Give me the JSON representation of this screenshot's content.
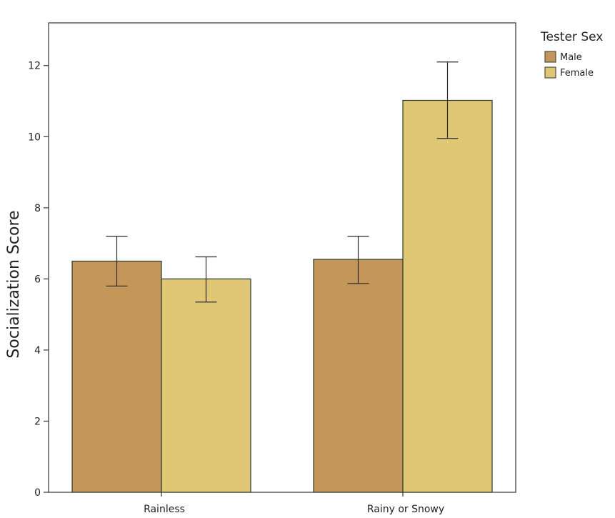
{
  "chart_data": {
    "type": "bar",
    "title": "",
    "xlabel": "",
    "ylabel": "Socialization Score",
    "ylim": [
      0,
      13.2
    ],
    "yticks": [
      0,
      2,
      4,
      6,
      8,
      10,
      12
    ],
    "categories": [
      "Rainless",
      "Rainy or Snowy"
    ],
    "series": [
      {
        "name": "Male",
        "color": "#c4965a",
        "values": [
          6.5,
          6.55
        ],
        "err_low": [
          5.8,
          5.87
        ],
        "err_high": [
          7.2,
          7.2
        ]
      },
      {
        "name": "Female",
        "color": "#dfc775",
        "values": [
          6.0,
          11.02
        ],
        "err_low": [
          5.35,
          9.95
        ],
        "err_high": [
          6.62,
          12.1
        ]
      }
    ],
    "legend": {
      "title": "Tester Sex",
      "position": "right"
    },
    "grid": false
  }
}
